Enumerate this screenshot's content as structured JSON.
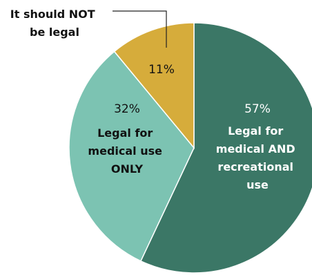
{
  "chart_data": {
    "type": "pie",
    "slices": [
      {
        "label_lines": [
          "Legal for",
          "medical AND",
          "recreational",
          "use"
        ],
        "value": 57,
        "value_label": "57%",
        "color": "#3b7766",
        "text_color": "#ffffff"
      },
      {
        "label_lines": [
          "Legal for",
          "medical use",
          "ONLY"
        ],
        "value": 32,
        "value_label": "32%",
        "color": "#7cc3b2",
        "text_color": "#111111"
      },
      {
        "label_lines": [
          "It should NOT",
          "be legal"
        ],
        "value": 11,
        "value_label": "11%",
        "color": "#d6ac3b",
        "text_color": "#111111"
      }
    ],
    "start": "12 o'clock",
    "direction": "clockwise"
  }
}
